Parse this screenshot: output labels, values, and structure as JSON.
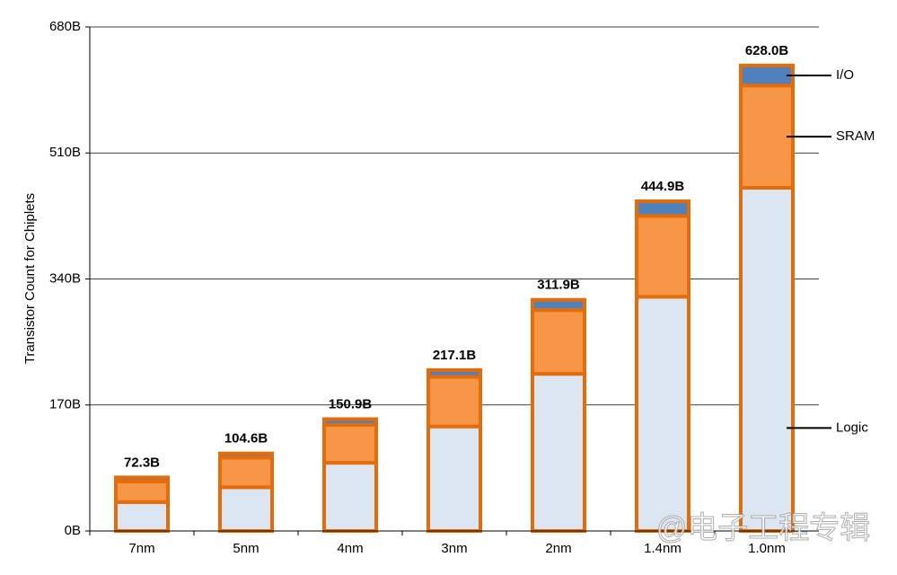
{
  "chart_data": {
    "type": "stacked-bar",
    "y_label": "Transistor Count for Chiplets",
    "categories": [
      "7nm",
      "5nm",
      "4nm",
      "3nm",
      "2nm",
      "1.4nm",
      "1.0nm"
    ],
    "series": [
      {
        "name": "Logic",
        "color": "#dce6f2",
        "values": [
          39,
          59,
          92,
          141,
          212,
          316,
          463
        ]
      },
      {
        "name": "SRAM",
        "color": "#f79646",
        "values": [
          28,
          40,
          51,
          67,
          86,
          109,
          138
        ]
      },
      {
        "name": "I/O",
        "color": "#4f81bd",
        "values": [
          5.3,
          5.6,
          7.9,
          9.1,
          13.9,
          19.9,
          27.0
        ]
      }
    ],
    "totals": {
      "values": [
        72.3,
        104.6,
        150.9,
        217.1,
        311.9,
        444.9,
        628.0
      ],
      "value_labels": [
        "72.3B",
        "104.6B",
        "150.9B",
        "217.1B",
        "311.9B",
        "444.9B",
        "628.0B"
      ]
    },
    "border_color": "#e46c0a",
    "ylim": [
      0,
      680
    ],
    "yticks": [
      {
        "value": 0,
        "label": "0B"
      },
      {
        "value": 170,
        "label": "170B"
      },
      {
        "value": 340,
        "label": "340B"
      },
      {
        "value": 510,
        "label": "510B"
      },
      {
        "value": 680,
        "label": "680B"
      }
    ],
    "grid": true,
    "watermark": "@电子工程专辑"
  }
}
